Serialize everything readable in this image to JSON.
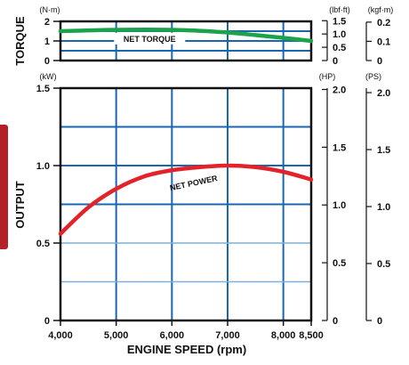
{
  "colors": {
    "torque": "#1aa34a",
    "power": "#e3222a",
    "grid_major": "#1a67b1",
    "grid_minor": "#7fb0dc",
    "frame": "#111111",
    "tab": "#b32025"
  },
  "chart_data": {
    "type": "line",
    "title": "",
    "xlabel": "ENGINE SPEED (rpm)",
    "xlim": [
      4000,
      8500
    ],
    "x_ticks": [
      "4,000",
      "5,000",
      "6,000",
      "7,000",
      "8,000",
      "8,500"
    ],
    "x_tick_values": [
      4000,
      5000,
      6000,
      7000,
      8000,
      8500
    ],
    "torque_panel": {
      "ylabel": "TORQUE",
      "unit_left": "(N·m)",
      "unit_right1": "(lbf·ft)",
      "unit_right2": "(kgf·m)",
      "ylim": [
        0,
        2
      ],
      "left_ticks": [
        "2",
        "1",
        "0"
      ],
      "left_tick_values": [
        2,
        1,
        0
      ],
      "right1_ticks": [
        "1.5",
        "1.0",
        "0.5",
        "0"
      ],
      "right1_tick_values": [
        1.5,
        1.0,
        0.5,
        0
      ],
      "right2_ticks": [
        "0.2",
        "0.1",
        "0"
      ],
      "right2_tick_values": [
        0.2,
        0.1,
        0
      ],
      "series": [
        {
          "name": "NET TORQUE",
          "x": [
            4000,
            4500,
            5000,
            5500,
            6000,
            6500,
            7000,
            7500,
            8000,
            8500
          ],
          "y": [
            1.5,
            1.54,
            1.57,
            1.58,
            1.57,
            1.52,
            1.43,
            1.3,
            1.16,
            1.0
          ]
        }
      ]
    },
    "power_panel": {
      "ylabel": "OUTPUT",
      "unit_left": "(kW)",
      "unit_right1": "(HP)",
      "unit_right2": "(PS)",
      "ylim": [
        0,
        1.5
      ],
      "left_ticks": [
        "1.5",
        "1.0",
        "0.5",
        "0"
      ],
      "left_tick_values": [
        1.5,
        1.0,
        0.5,
        0
      ],
      "right1_ticks": [
        "2.0",
        "1.5",
        "1.0",
        "0.5",
        "0"
      ],
      "right1_tick_values": [
        2.0,
        1.5,
        1.0,
        0.5,
        0
      ],
      "right2_ticks": [
        "2.0",
        "1.5",
        "1.0",
        "0.5",
        "0"
      ],
      "right2_tick_values": [
        2.0,
        1.5,
        1.0,
        0.5,
        0
      ],
      "series": [
        {
          "name": "NET POWER",
          "x": [
            4000,
            4500,
            5000,
            5500,
            6000,
            6500,
            7000,
            7500,
            8000,
            8500
          ],
          "y": [
            0.56,
            0.73,
            0.85,
            0.93,
            0.97,
            0.99,
            1.0,
            0.99,
            0.96,
            0.91
          ]
        }
      ]
    }
  }
}
